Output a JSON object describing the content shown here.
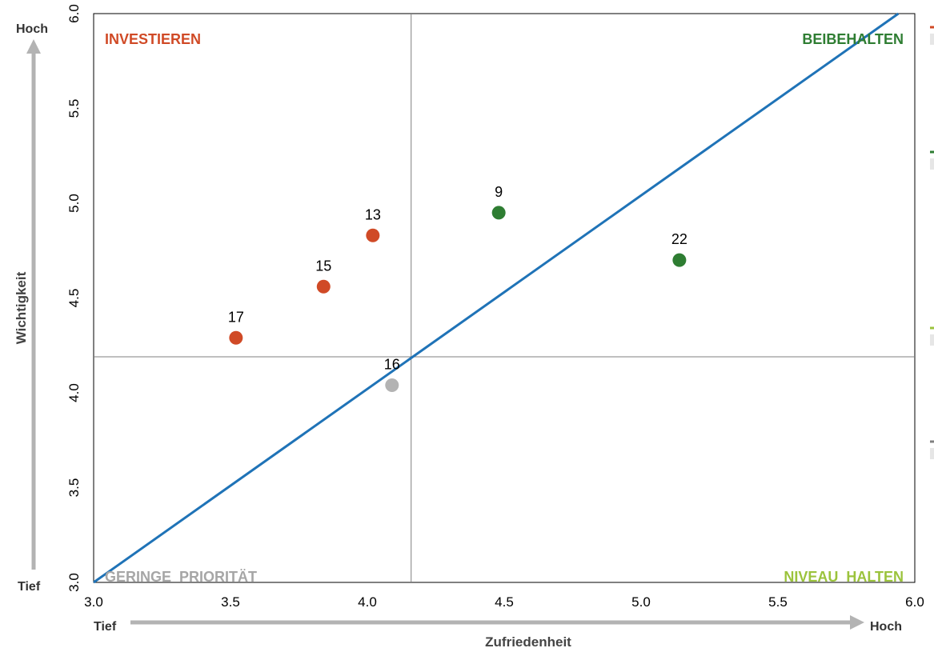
{
  "chart_data": {
    "type": "scatter",
    "xlabel": "Zufriedenheit",
    "ylabel": "Wichtigkeit",
    "xlim": [
      3.0,
      6.0
    ],
    "ylim": [
      3.0,
      6.0
    ],
    "x_ticks": [
      "3.0",
      "3.5",
      "4.0",
      "4.5",
      "5.0",
      "5.5",
      "6.0"
    ],
    "y_ticks": [
      "3.0",
      "3.5",
      "4.0",
      "4.5",
      "5.0",
      "5.5",
      "6.0"
    ],
    "x_low": "Tief",
    "x_high": "Hoch",
    "y_low": "Tief",
    "y_high": "Hoch",
    "divider": {
      "x": 4.16,
      "y": 4.19
    },
    "diagonal": {
      "from": [
        3.0,
        3.0
      ],
      "to": [
        5.94,
        6.0
      ],
      "color": "#1f73b7"
    },
    "quadrants": {
      "top_left": {
        "label": "INVESTIEREN",
        "color": "#d04a26"
      },
      "top_right": {
        "label": "BEIBEHALTEN",
        "color": "#2e7d32"
      },
      "bottom_left": {
        "label": "GERINGE  PRIORITÄT",
        "color": "#a6a6a6"
      },
      "bottom_right": {
        "label": "NIVEAU  HALTEN",
        "color": "#9bc33c"
      }
    },
    "points": [
      {
        "label": "17",
        "x": 3.52,
        "y": 4.29,
        "color": "#d04a26"
      },
      {
        "label": "15",
        "x": 3.84,
        "y": 4.56,
        "color": "#d04a26"
      },
      {
        "label": "13",
        "x": 4.02,
        "y": 4.83,
        "color": "#d04a26"
      },
      {
        "label": "9",
        "x": 4.48,
        "y": 4.95,
        "color": "#2e7d32"
      },
      {
        "label": "22",
        "x": 5.14,
        "y": 4.7,
        "color": "#2e7d32"
      },
      {
        "label": "16",
        "x": 4.09,
        "y": 4.04,
        "color": "#b3b3b3"
      }
    ]
  },
  "legend_marks": [
    "#d04a26",
    "#2e7d32",
    "#9bc33c",
    "#808080"
  ]
}
